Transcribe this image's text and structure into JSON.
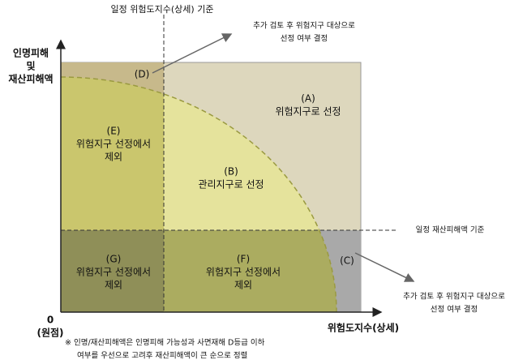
{
  "top_threshold_label": "일정 위험도지수(상세) 기준",
  "right_threshold_label": "일정 재산피해액 기준",
  "y_axis_label": [
    "인명피해",
    "및",
    "재산피해액"
  ],
  "x_axis_label": "위험도지수(상세)",
  "origin": [
    "0",
    "(원점)"
  ],
  "callout_top": [
    "추가 검토 후 위험지구 대상으로",
    "선정 여부 결정"
  ],
  "callout_bottom": [
    "추가 검토 후 위험지구 대상으로",
    "선정 여부 결정"
  ],
  "regions": {
    "A": {
      "letter": "(A)",
      "lines": [
        "위험지구로 선정"
      ]
    },
    "B": {
      "letter": "(B)",
      "lines": [
        "관리지구로 선정"
      ]
    },
    "C": {
      "letter": "(C)"
    },
    "D": {
      "letter": "(D)"
    },
    "E": {
      "letter": "(E)",
      "lines": [
        "위험지구 선정에서",
        "제외"
      ]
    },
    "F": {
      "letter": "(F)",
      "lines": [
        "위험지구 선정에서",
        "제외"
      ]
    },
    "G": {
      "letter": "(G)",
      "lines": [
        "위험지구 선정에서",
        "제외"
      ]
    }
  },
  "footnote": [
    "※  인명/재산피해액은 인명피해 가능성과 사면재해 D등급 이하",
    "여부를 우선으로 고려후 재산피해액이 큰 순으로 정렬"
  ]
}
